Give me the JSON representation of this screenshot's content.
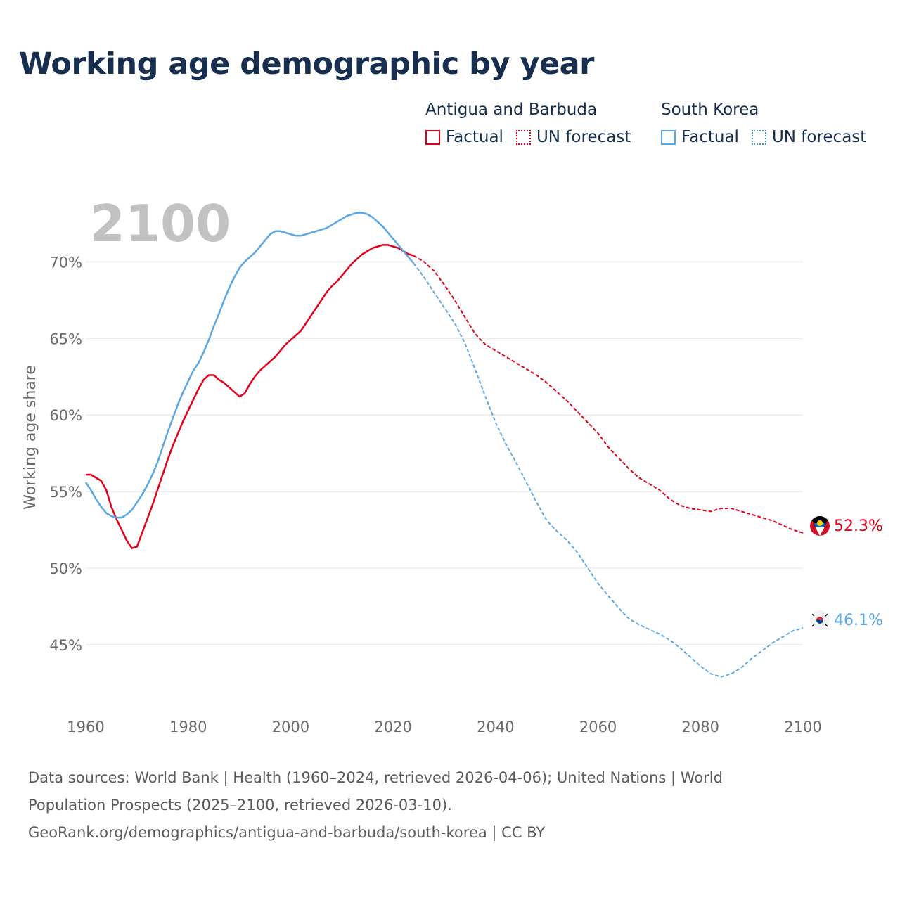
{
  "title": "Working age demographic by year",
  "legend": {
    "groups": [
      {
        "name": "Antigua and Barbuda",
        "factual_label": "Factual",
        "forecast_label": "UN forecast",
        "color": "#e3001b"
      },
      {
        "name": "South Korea",
        "factual_label": "Factual",
        "forecast_label": "UN forecast",
        "color": "#5aa7e6"
      }
    ]
  },
  "source": {
    "line1": "Data sources: World Bank | Health (1960–2024, retrieved 2026-04-06); United Nations | World",
    "line2": "Population Prospects (2025–2100, retrieved 2026-03-10).",
    "line3": "GeoRank.org/demographics/antigua-and-barbuda/south-korea | CC BY"
  },
  "chart_data": {
    "type": "line",
    "title": "Working age demographic by year",
    "year_label": "2100",
    "ylabel": "Working age share",
    "xlabel": "",
    "xlim": [
      1960,
      2100
    ],
    "ylim": [
      41,
      73
    ],
    "xticks": [
      1960,
      1980,
      2000,
      2020,
      2040,
      2060,
      2080,
      2100
    ],
    "yticks": [
      45,
      50,
      55,
      60,
      65,
      70
    ],
    "ytick_labels": [
      "45%",
      "50%",
      "55%",
      "60%",
      "65%",
      "70%"
    ],
    "grid": true,
    "factual_end_year": 2024,
    "series": [
      {
        "name": "Antigua and Barbuda",
        "color": "#e3001b",
        "end_label": "52.3%",
        "points": [
          [
            1960,
            56.1
          ],
          [
            1961,
            56.1
          ],
          [
            1962,
            55.9
          ],
          [
            1963,
            55.7
          ],
          [
            1964,
            55.1
          ],
          [
            1965,
            54.0
          ],
          [
            1966,
            53.2
          ],
          [
            1967,
            52.5
          ],
          [
            1968,
            51.8
          ],
          [
            1969,
            51.3
          ],
          [
            1970,
            51.4
          ],
          [
            1971,
            52.3
          ],
          [
            1972,
            53.2
          ],
          [
            1973,
            54.1
          ],
          [
            1974,
            55.1
          ],
          [
            1975,
            56.1
          ],
          [
            1976,
            57.1
          ],
          [
            1977,
            58.0
          ],
          [
            1978,
            58.8
          ],
          [
            1979,
            59.6
          ],
          [
            1980,
            60.3
          ],
          [
            1981,
            61.0
          ],
          [
            1982,
            61.7
          ],
          [
            1983,
            62.3
          ],
          [
            1984,
            62.6
          ],
          [
            1985,
            62.6
          ],
          [
            1986,
            62.3
          ],
          [
            1987,
            62.1
          ],
          [
            1988,
            61.8
          ],
          [
            1989,
            61.5
          ],
          [
            1990,
            61.2
          ],
          [
            1991,
            61.4
          ],
          [
            1992,
            62.0
          ],
          [
            1993,
            62.5
          ],
          [
            1994,
            62.9
          ],
          [
            1995,
            63.2
          ],
          [
            1996,
            63.5
          ],
          [
            1997,
            63.8
          ],
          [
            1998,
            64.2
          ],
          [
            1999,
            64.6
          ],
          [
            2000,
            64.9
          ],
          [
            2001,
            65.2
          ],
          [
            2002,
            65.5
          ],
          [
            2003,
            66.0
          ],
          [
            2004,
            66.5
          ],
          [
            2005,
            67.0
          ],
          [
            2006,
            67.5
          ],
          [
            2007,
            68.0
          ],
          [
            2008,
            68.4
          ],
          [
            2009,
            68.7
          ],
          [
            2010,
            69.1
          ],
          [
            2011,
            69.5
          ],
          [
            2012,
            69.9
          ],
          [
            2013,
            70.2
          ],
          [
            2014,
            70.5
          ],
          [
            2015,
            70.7
          ],
          [
            2016,
            70.9
          ],
          [
            2017,
            71.0
          ],
          [
            2018,
            71.1
          ],
          [
            2019,
            71.1
          ],
          [
            2020,
            71.0
          ],
          [
            2021,
            70.9
          ],
          [
            2022,
            70.7
          ],
          [
            2023,
            70.5
          ],
          [
            2024,
            70.4
          ],
          [
            2026,
            70.0
          ],
          [
            2028,
            69.4
          ],
          [
            2030,
            68.5
          ],
          [
            2032,
            67.5
          ],
          [
            2034,
            66.4
          ],
          [
            2036,
            65.3
          ],
          [
            2038,
            64.6
          ],
          [
            2040,
            64.2
          ],
          [
            2042,
            63.8
          ],
          [
            2044,
            63.4
          ],
          [
            2046,
            63.0
          ],
          [
            2048,
            62.6
          ],
          [
            2050,
            62.1
          ],
          [
            2052,
            61.5
          ],
          [
            2054,
            60.9
          ],
          [
            2056,
            60.2
          ],
          [
            2058,
            59.5
          ],
          [
            2060,
            58.8
          ],
          [
            2062,
            57.9
          ],
          [
            2064,
            57.2
          ],
          [
            2066,
            56.5
          ],
          [
            2068,
            55.9
          ],
          [
            2070,
            55.5
          ],
          [
            2072,
            55.1
          ],
          [
            2074,
            54.5
          ],
          [
            2076,
            54.1
          ],
          [
            2078,
            53.9
          ],
          [
            2080,
            53.8
          ],
          [
            2082,
            53.7
          ],
          [
            2084,
            53.9
          ],
          [
            2086,
            53.9
          ],
          [
            2088,
            53.7
          ],
          [
            2090,
            53.5
          ],
          [
            2092,
            53.3
          ],
          [
            2094,
            53.1
          ],
          [
            2096,
            52.8
          ],
          [
            2098,
            52.5
          ],
          [
            2100,
            52.3
          ]
        ]
      },
      {
        "name": "South Korea",
        "color": "#5aa7e6",
        "end_label": "46.1%",
        "points": [
          [
            1960,
            55.6
          ],
          [
            1961,
            55.1
          ],
          [
            1962,
            54.5
          ],
          [
            1963,
            54.0
          ],
          [
            1964,
            53.6
          ],
          [
            1965,
            53.4
          ],
          [
            1966,
            53.3
          ],
          [
            1967,
            53.3
          ],
          [
            1968,
            53.5
          ],
          [
            1969,
            53.8
          ],
          [
            1970,
            54.3
          ],
          [
            1971,
            54.8
          ],
          [
            1972,
            55.4
          ],
          [
            1973,
            56.1
          ],
          [
            1974,
            56.9
          ],
          [
            1975,
            57.9
          ],
          [
            1976,
            58.9
          ],
          [
            1977,
            59.8
          ],
          [
            1978,
            60.7
          ],
          [
            1979,
            61.5
          ],
          [
            1980,
            62.2
          ],
          [
            1981,
            62.9
          ],
          [
            1982,
            63.4
          ],
          [
            1983,
            64.1
          ],
          [
            1984,
            64.9
          ],
          [
            1985,
            65.8
          ],
          [
            1986,
            66.6
          ],
          [
            1987,
            67.5
          ],
          [
            1988,
            68.3
          ],
          [
            1989,
            69.0
          ],
          [
            1990,
            69.6
          ],
          [
            1991,
            70.0
          ],
          [
            1992,
            70.3
          ],
          [
            1993,
            70.6
          ],
          [
            1994,
            71.0
          ],
          [
            1995,
            71.4
          ],
          [
            1996,
            71.8
          ],
          [
            1997,
            72.0
          ],
          [
            1998,
            72.0
          ],
          [
            1999,
            71.9
          ],
          [
            2000,
            71.8
          ],
          [
            2001,
            71.7
          ],
          [
            2002,
            71.7
          ],
          [
            2003,
            71.8
          ],
          [
            2004,
            71.9
          ],
          [
            2005,
            72.0
          ],
          [
            2006,
            72.1
          ],
          [
            2007,
            72.2
          ],
          [
            2008,
            72.4
          ],
          [
            2009,
            72.6
          ],
          [
            2010,
            72.8
          ],
          [
            2011,
            73.0
          ],
          [
            2012,
            73.1
          ],
          [
            2013,
            73.2
          ],
          [
            2014,
            73.2
          ],
          [
            2015,
            73.1
          ],
          [
            2016,
            72.9
          ],
          [
            2017,
            72.6
          ],
          [
            2018,
            72.3
          ],
          [
            2019,
            71.9
          ],
          [
            2020,
            71.5
          ],
          [
            2021,
            71.1
          ],
          [
            2022,
            70.7
          ],
          [
            2023,
            70.3
          ],
          [
            2024,
            69.9
          ],
          [
            2026,
            69.0
          ],
          [
            2028,
            68.0
          ],
          [
            2030,
            67.0
          ],
          [
            2032,
            66.0
          ],
          [
            2034,
            64.7
          ],
          [
            2036,
            63.0
          ],
          [
            2038,
            61.2
          ],
          [
            2040,
            59.5
          ],
          [
            2042,
            58.1
          ],
          [
            2044,
            56.9
          ],
          [
            2046,
            55.6
          ],
          [
            2048,
            54.3
          ],
          [
            2050,
            53.1
          ],
          [
            2052,
            52.4
          ],
          [
            2054,
            51.8
          ],
          [
            2056,
            51.0
          ],
          [
            2058,
            50.0
          ],
          [
            2060,
            49.0
          ],
          [
            2062,
            48.2
          ],
          [
            2064,
            47.4
          ],
          [
            2066,
            46.7
          ],
          [
            2068,
            46.3
          ],
          [
            2070,
            46.0
          ],
          [
            2072,
            45.7
          ],
          [
            2074,
            45.3
          ],
          [
            2076,
            44.8
          ],
          [
            2078,
            44.2
          ],
          [
            2080,
            43.6
          ],
          [
            2082,
            43.1
          ],
          [
            2084,
            42.9
          ],
          [
            2086,
            43.1
          ],
          [
            2088,
            43.5
          ],
          [
            2090,
            44.1
          ],
          [
            2092,
            44.6
          ],
          [
            2094,
            45.1
          ],
          [
            2096,
            45.5
          ],
          [
            2098,
            45.9
          ],
          [
            2100,
            46.1
          ]
        ]
      }
    ]
  }
}
